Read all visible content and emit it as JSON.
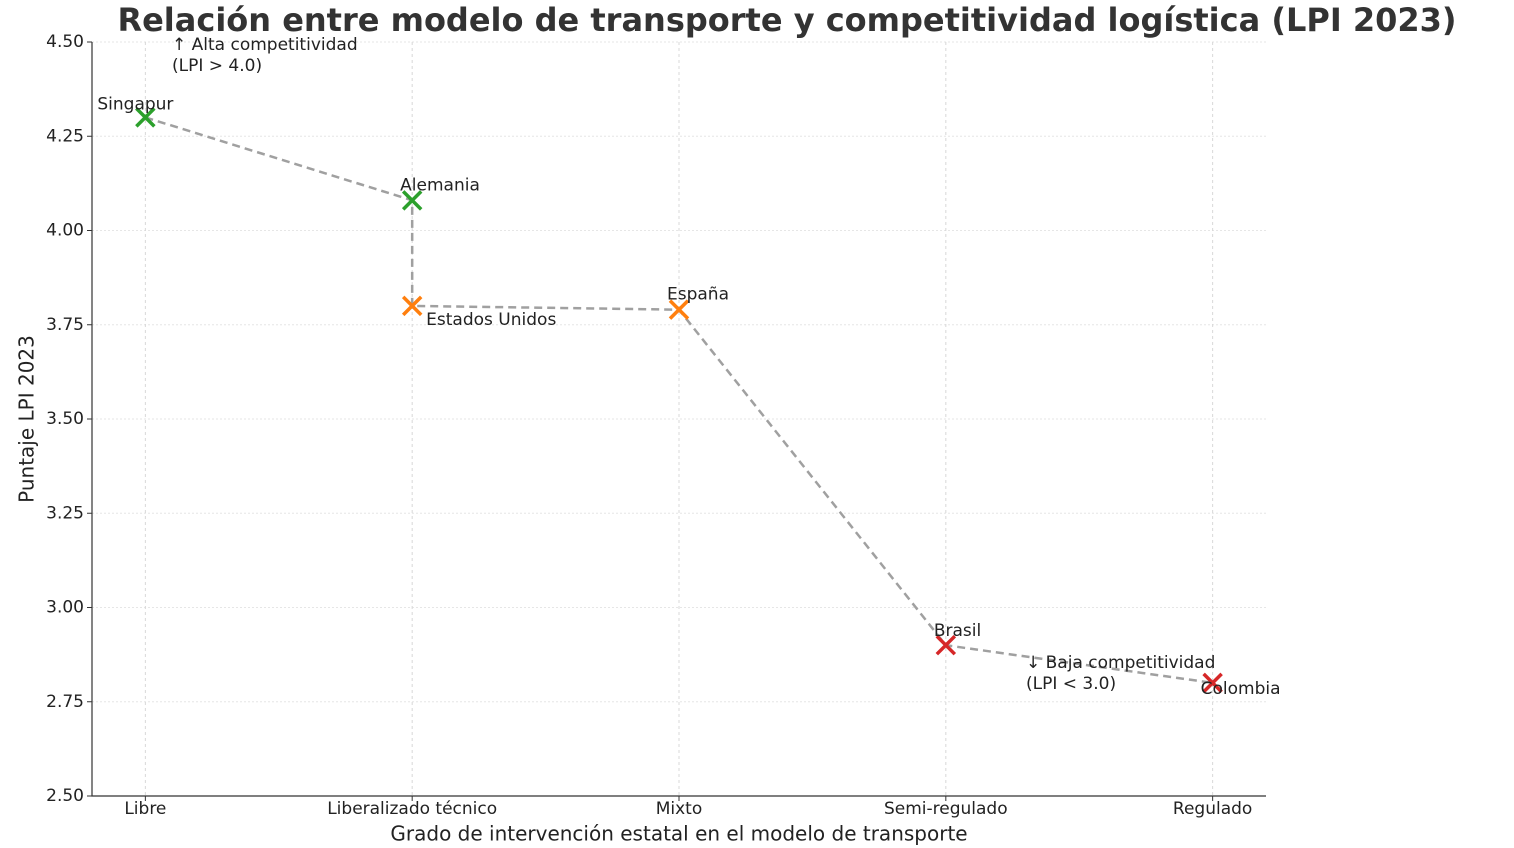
{
  "chart_data": {
    "type": "scatter",
    "title": "Relación entre modelo de transporte y competitividad logística (LPI 2023)",
    "x_label": "Grado de intervención estatal en el modelo de transporte",
    "y_label": "Puntaje LPI 2023",
    "categories": [
      "Libre",
      "Liberalizado técnico",
      "Mixto",
      "Semi-regulado",
      "Regulado"
    ],
    "x": [
      "Libre",
      "Liberalizado técnico",
      "Liberalizado técnico",
      "Mixto",
      "Semi-regulado",
      "Regulado"
    ],
    "values": [
      4.3,
      4.08,
      3.8,
      3.79,
      2.9,
      2.8
    ],
    "point_labels": [
      "Singapur",
      "Alemania",
      "Estados Unidos",
      "España",
      "Brasil",
      "Colombia"
    ],
    "colors": [
      "#2ca02c",
      "#2ca02c",
      "#ff7f0e",
      "#ff7f0e",
      "#d62728",
      "#d62728"
    ],
    "line_color": "#a0a0a0",
    "ylim": [
      2.5,
      4.5
    ],
    "yticks": [
      {
        "value": 2.5,
        "label": "2.50"
      },
      {
        "value": 2.75,
        "label": "2.75"
      },
      {
        "value": 3.0,
        "label": "3.00"
      },
      {
        "value": 3.25,
        "label": "3.25"
      },
      {
        "value": 3.5,
        "label": "3.50"
      },
      {
        "value": 3.75,
        "label": "3.75"
      },
      {
        "value": 4.0,
        "label": "4.00"
      },
      {
        "value": 4.25,
        "label": "4.25"
      },
      {
        "value": 4.5,
        "label": "4.50"
      }
    ],
    "grid": true,
    "annotations": [
      {
        "lines": [
          "↑ Alta competitividad",
          "(LPI > 4.0)"
        ],
        "color": "green"
      },
      {
        "lines": [
          "↓ Baja competitividad",
          "(LPI < 3.0)"
        ],
        "color": "red"
      }
    ]
  }
}
